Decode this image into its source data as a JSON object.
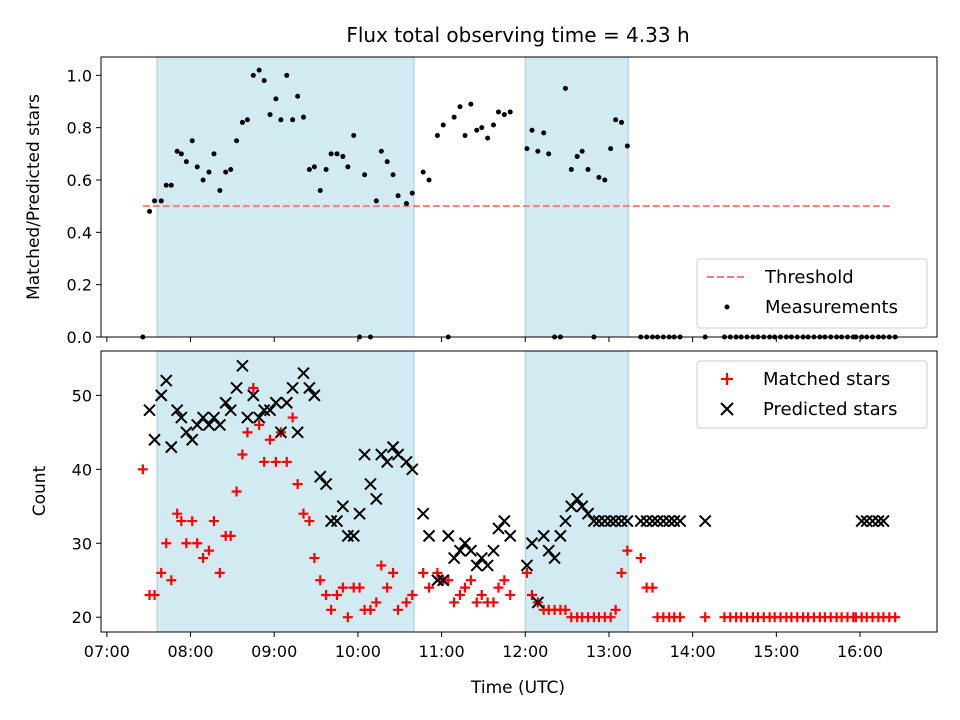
{
  "chart_data": {
    "type": "scatter",
    "title": "Flux total observing time = 4.33 h",
    "xlabel": "Time (UTC)",
    "x_unit": "hours UTC",
    "xlim": [
      6.93,
      16.92
    ],
    "x_ticks": [
      {
        "value": 7,
        "label": "07:00"
      },
      {
        "value": 8,
        "label": "08:00"
      },
      {
        "value": 9,
        "label": "09:00"
      },
      {
        "value": 10,
        "label": "10:00"
      },
      {
        "value": 11,
        "label": "11:00"
      },
      {
        "value": 12,
        "label": "12:00"
      },
      {
        "value": 13,
        "label": "13:00"
      },
      {
        "value": 14,
        "label": "14:00"
      },
      {
        "value": 15,
        "label": "15:00"
      },
      {
        "value": 16,
        "label": "16:00"
      }
    ],
    "shaded_intervals": [
      [
        7.6,
        10.67
      ],
      [
        12.0,
        13.23
      ]
    ],
    "shade_color": "#add8e6",
    "panels": [
      {
        "id": "ratio",
        "ylabel": "Matched/Predicted stars",
        "ylim": [
          0,
          1.07
        ],
        "y_ticks": [
          "0.0",
          "0.2",
          "0.4",
          "0.6",
          "0.8",
          "1.0"
        ],
        "legend_position": "lower right",
        "series": [
          {
            "name": "Threshold",
            "kind": "dashed-line",
            "color": "#f08080",
            "x": [
              7.43,
              16.37
            ],
            "y": [
              0.5,
              0.5
            ]
          },
          {
            "name": "Measurements",
            "kind": "dot",
            "color": "#000000",
            "x": [
              7.43,
              7.51,
              7.57,
              7.65,
              7.71,
              7.77,
              7.84,
              7.89,
              7.95,
              8.02,
              8.08,
              8.15,
              8.22,
              8.28,
              8.35,
              8.42,
              8.48,
              8.55,
              8.62,
              8.68,
              8.75,
              8.82,
              8.88,
              8.95,
              9.02,
              9.08,
              9.15,
              9.22,
              9.28,
              9.35,
              9.42,
              9.48,
              9.55,
              9.62,
              9.68,
              9.75,
              9.82,
              9.88,
              9.95,
              10.02,
              10.08,
              10.15,
              10.22,
              10.28,
              10.35,
              10.42,
              10.48,
              10.58,
              10.65,
              10.78,
              10.85,
              10.95,
              11.02,
              11.08,
              11.15,
              11.22,
              11.28,
              11.35,
              11.42,
              11.48,
              11.55,
              11.62,
              11.68,
              11.75,
              11.82,
              12.02,
              12.08,
              12.15,
              12.22,
              12.28,
              12.35,
              12.42,
              12.48,
              12.55,
              12.62,
              12.68,
              12.75,
              12.82,
              12.88,
              12.95,
              13.02,
              13.08,
              13.15,
              13.22,
              13.38,
              13.45,
              13.52,
              13.58,
              13.65,
              13.72,
              13.78,
              13.85,
              14.15,
              14.38,
              15.95,
              16.02,
              16.08,
              16.15,
              16.22,
              16.28,
              16.35,
              16.42
            ],
            "y": [
              0.0,
              0.48,
              0.52,
              0.52,
              0.58,
              0.58,
              0.71,
              0.7,
              0.67,
              0.75,
              0.65,
              0.6,
              0.63,
              0.7,
              0.56,
              0.63,
              0.64,
              0.75,
              0.82,
              0.83,
              1.0,
              1.02,
              0.98,
              0.85,
              0.91,
              0.83,
              1.0,
              0.83,
              0.92,
              0.84,
              0.64,
              0.65,
              0.56,
              0.64,
              0.7,
              0.7,
              0.69,
              0.65,
              0.77,
              0.0,
              0.62,
              0.0,
              0.52,
              0.71,
              0.67,
              0.62,
              0.54,
              0.51,
              0.55,
              0.63,
              0.6,
              0.77,
              0.81,
              0.0,
              0.84,
              0.88,
              0.77,
              0.89,
              0.79,
              0.8,
              0.76,
              0.81,
              0.86,
              0.85,
              0.86,
              0.72,
              0.79,
              0.71,
              0.78,
              0.7,
              0.0,
              0.0,
              0.95,
              0.64,
              0.69,
              0.71,
              0.64,
              0.0,
              0.61,
              0.6,
              0.72,
              0.83,
              0.82,
              0.73,
              0.0,
              0.0,
              0.0,
              0.0,
              0.0,
              0.0,
              0.0,
              0.0,
              0.0,
              0.0,
              0.0,
              0.0,
              0.0,
              0.0,
              0.0,
              0.0,
              0.0,
              0.0
            ]
          },
          {
            "name": "",
            "kind": "dot",
            "color": "#000000",
            "x": [
              14.45,
              14.52,
              14.58,
              14.65,
              14.72,
              14.78,
              14.85,
              14.92,
              14.98,
              15.05,
              15.12,
              15.18,
              15.25,
              15.32,
              15.38,
              15.45,
              15.52,
              15.58,
              15.65,
              15.72,
              15.78,
              15.85,
              15.92
            ],
            "y": [
              0.0,
              0.0,
              0.0,
              0.0,
              0.0,
              0.0,
              0.0,
              0.0,
              0.0,
              0.0,
              0.0,
              0.0,
              0.0,
              0.0,
              0.0,
              0.0,
              0.0,
              0.0,
              0.0,
              0.0,
              0.0,
              0.0,
              0.0
            ]
          }
        ]
      },
      {
        "id": "count",
        "ylabel": "Count",
        "ylim": [
          18,
          56
        ],
        "y_ticks": [
          "20",
          "30",
          "40",
          "50"
        ],
        "legend_position": "upper right",
        "series": [
          {
            "name": "Matched stars",
            "kind": "plus",
            "color": "#ff0000",
            "x": [
              7.43,
              7.51,
              7.57,
              7.65,
              7.71,
              7.77,
              7.84,
              7.89,
              7.95,
              8.02,
              8.08,
              8.15,
              8.22,
              8.28,
              8.35,
              8.42,
              8.48,
              8.55,
              8.62,
              8.68,
              8.75,
              8.82,
              8.88,
              8.95,
              9.02,
              9.08,
              9.15,
              9.22,
              9.28,
              9.35,
              9.42,
              9.48,
              9.55,
              9.62,
              9.68,
              9.75,
              9.82,
              9.88,
              9.95,
              10.02,
              10.08,
              10.15,
              10.22,
              10.28,
              10.35,
              10.42,
              10.48,
              10.58,
              10.65,
              10.78,
              10.85,
              10.95,
              11.02,
              11.08,
              11.15,
              11.22,
              11.28,
              11.35,
              11.42,
              11.48,
              11.55,
              11.62,
              11.68,
              11.75,
              11.82,
              12.02,
              12.08,
              12.15,
              12.22,
              12.28,
              12.35,
              12.42,
              12.48,
              12.55,
              12.62,
              12.68,
              12.75,
              12.82,
              12.88,
              12.95,
              13.02,
              13.08,
              13.15,
              13.22,
              13.38,
              13.45,
              13.52,
              13.58,
              13.65,
              13.72,
              13.78,
              13.85,
              14.15,
              14.38,
              15.95,
              16.02,
              16.08,
              16.15,
              16.22,
              16.28,
              16.35,
              16.42
            ],
            "y": [
              40,
              23,
              23,
              26,
              30,
              25,
              34,
              33,
              30,
              33,
              30,
              28,
              29,
              33,
              26,
              31,
              31,
              37,
              42,
              45,
              51,
              46,
              41,
              44,
              41,
              45,
              41,
              47,
              38,
              34,
              33,
              28,
              25,
              23,
              21,
              23,
              24,
              20,
              24,
              24,
              21,
              21,
              22,
              27,
              24,
              26,
              21,
              22,
              23,
              26,
              24,
              26,
              25,
              25,
              22,
              23,
              24,
              25,
              22,
              23,
              22,
              22,
              24,
              25,
              23,
              26,
              23,
              22,
              21,
              21,
              21,
              21,
              21,
              20,
              20,
              20,
              20,
              20,
              20,
              20,
              20,
              21,
              26,
              29,
              28,
              24,
              24,
              20,
              20,
              20,
              20,
              20,
              20,
              20,
              20,
              20,
              20,
              20,
              20,
              20,
              20,
              20
            ]
          },
          {
            "name": "",
            "kind": "plus",
            "color": "#ff0000",
            "x": [
              14.45,
              14.52,
              14.58,
              14.65,
              14.72,
              14.78,
              14.85,
              14.92,
              14.98,
              15.05,
              15.12,
              15.18,
              15.25,
              15.32,
              15.38,
              15.45,
              15.52,
              15.58,
              15.65,
              15.72,
              15.78,
              15.85,
              15.92
            ],
            "y": [
              20,
              20,
              20,
              20,
              20,
              20,
              20,
              20,
              20,
              20,
              20,
              20,
              20,
              20,
              20,
              20,
              20,
              20,
              20,
              20,
              20,
              20,
              20
            ]
          },
          {
            "name": "Predicted stars",
            "kind": "x",
            "color": "#000000",
            "x": [
              7.51,
              7.57,
              7.65,
              7.71,
              7.77,
              7.84,
              7.89,
              7.95,
              8.02,
              8.08,
              8.15,
              8.22,
              8.28,
              8.35,
              8.42,
              8.48,
              8.55,
              8.62,
              8.68,
              8.75,
              8.82,
              8.88,
              8.95,
              9.02,
              9.08,
              9.15,
              9.22,
              9.28,
              9.35,
              9.42,
              9.48,
              9.55,
              9.62,
              9.68,
              9.75,
              9.82,
              9.88,
              9.95,
              10.02,
              10.08,
              10.15,
              10.22,
              10.28,
              10.35,
              10.42,
              10.48,
              10.58,
              10.65,
              10.78,
              10.85,
              10.95,
              11.02,
              11.08,
              11.15,
              11.22,
              11.28,
              11.35,
              11.42,
              11.48,
              11.55,
              11.62,
              11.68,
              11.75,
              11.82,
              12.02,
              12.08,
              12.15,
              12.22,
              12.28,
              12.35,
              12.42,
              12.48,
              12.55,
              12.62,
              12.68,
              12.75,
              12.82,
              12.88,
              12.95,
              13.02,
              13.08,
              13.15,
              13.22,
              13.38,
              13.45,
              13.52,
              13.58,
              13.65,
              13.72,
              13.78,
              13.85,
              14.15,
              16.02,
              16.08,
              16.15,
              16.22,
              16.28
            ],
            "y": [
              48,
              44,
              50,
              52,
              43,
              48,
              47,
              45,
              44,
              46,
              47,
              46,
              47,
              46,
              49,
              48,
              51,
              54,
              47,
              50,
              47,
              48,
              48,
              49,
              45,
              49,
              51,
              45,
              53,
              51,
              50,
              39,
              38,
              33,
              33,
              35,
              31,
              31,
              34,
              42,
              38,
              36,
              42,
              41,
              43,
              42,
              41,
              40,
              34,
              31,
              25,
              25,
              31,
              28,
              29,
              30,
              29,
              27,
              28,
              27,
              29,
              32,
              33,
              31,
              27,
              30,
              22,
              31,
              29,
              28,
              31,
              33,
              35,
              36,
              35,
              34,
              33,
              33,
              33,
              33,
              33,
              33,
              33,
              33,
              33,
              33,
              33,
              33,
              33,
              33,
              33,
              33,
              33,
              33,
              33,
              33,
              33
            ]
          }
        ]
      }
    ]
  }
}
